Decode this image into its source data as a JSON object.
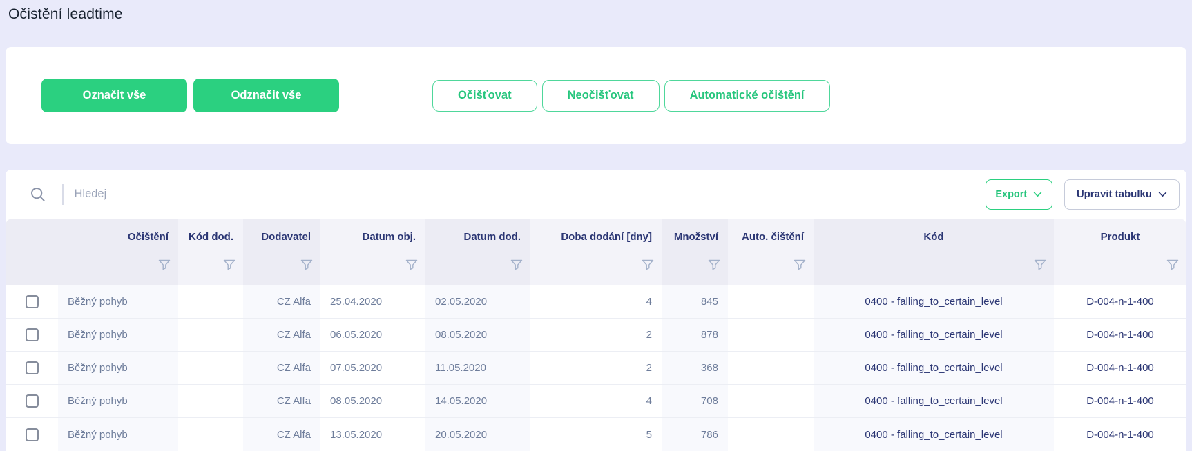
{
  "page": {
    "title": "Očistění leadtime"
  },
  "toolbar": {
    "select_all_label": "Označit vše",
    "deselect_all_label": "Odznačit vše",
    "clean_label": "Očišťovat",
    "not_clean_label": "Neočišťovat",
    "auto_clean_label": "Automatické očištění"
  },
  "table": {
    "search_placeholder": "Hledej",
    "export_label": "Export",
    "edit_table_label": "Upravit tabulku",
    "columns": [
      "Očištění",
      "Kód dod.",
      "Dodavatel",
      "Datum obj.",
      "Datum dod.",
      "Doba dodání [dny]",
      "Množství",
      "Auto. čištění",
      "Kód",
      "Produkt"
    ],
    "rows": [
      {
        "checked": false,
        "ocisteni": "Běžný pohyb",
        "kod_dod": "",
        "dodavatel": "CZ Alfa",
        "datum_obj": "25.04.2020",
        "datum_dod": "02.05.2020",
        "doba_dodani_dny": 4,
        "mnozstvi": 845,
        "auto_cisteni": "",
        "kod": "0400 - falling_to_certain_level",
        "produkt": "D-004-n-1-400"
      },
      {
        "checked": false,
        "ocisteni": "Běžný pohyb",
        "kod_dod": "",
        "dodavatel": "CZ Alfa",
        "datum_obj": "06.05.2020",
        "datum_dod": "08.05.2020",
        "doba_dodani_dny": 2,
        "mnozstvi": 878,
        "auto_cisteni": "",
        "kod": "0400 - falling_to_certain_level",
        "produkt": "D-004-n-1-400"
      },
      {
        "checked": false,
        "ocisteni": "Běžný pohyb",
        "kod_dod": "",
        "dodavatel": "CZ Alfa",
        "datum_obj": "07.05.2020",
        "datum_dod": "11.05.2020",
        "doba_dodani_dny": 2,
        "mnozstvi": 368,
        "auto_cisteni": "",
        "kod": "0400 - falling_to_certain_level",
        "produkt": "D-004-n-1-400"
      },
      {
        "checked": false,
        "ocisteni": "Běžný pohyb",
        "kod_dod": "",
        "dodavatel": "CZ Alfa",
        "datum_obj": "08.05.2020",
        "datum_dod": "14.05.2020",
        "doba_dodani_dny": 4,
        "mnozstvi": 708,
        "auto_cisteni": "",
        "kod": "0400 - falling_to_certain_level",
        "produkt": "D-004-n-1-400"
      },
      {
        "checked": false,
        "ocisteni": "Běžný pohyb",
        "kod_dod": "",
        "dodavatel": "CZ Alfa",
        "datum_obj": "13.05.2020",
        "datum_dod": "20.05.2020",
        "doba_dodani_dny": 5,
        "mnozstvi": 786,
        "auto_cisteni": "",
        "kod": "0400 - falling_to_certain_level",
        "produkt": "D-004-n-1-400"
      }
    ]
  },
  "icons": {
    "search": "magnifier",
    "filter": "funnel",
    "dropdown": "chevron-down"
  },
  "colors": {
    "accent_green": "#2bd080",
    "header_text_navy": "#2b3674",
    "body_text_slate": "#6e7d9b",
    "page_background": "#e9eafa"
  }
}
